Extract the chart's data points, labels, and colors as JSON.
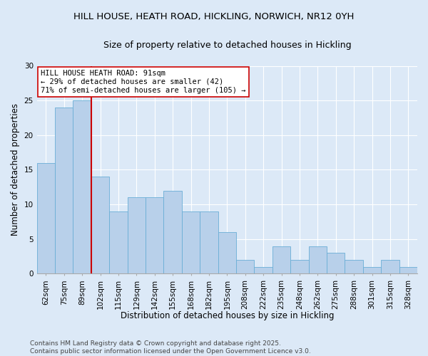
{
  "title1": "HILL HOUSE, HEATH ROAD, HICKLING, NORWICH, NR12 0YH",
  "title2": "Size of property relative to detached houses in Hickling",
  "xlabel": "Distribution of detached houses by size in Hickling",
  "ylabel": "Number of detached properties",
  "categories": [
    "62sqm",
    "75sqm",
    "89sqm",
    "102sqm",
    "115sqm",
    "129sqm",
    "142sqm",
    "155sqm",
    "168sqm",
    "182sqm",
    "195sqm",
    "208sqm",
    "222sqm",
    "235sqm",
    "248sqm",
    "262sqm",
    "275sqm",
    "288sqm",
    "301sqm",
    "315sqm",
    "328sqm"
  ],
  "values": [
    16,
    24,
    25,
    14,
    9,
    11,
    11,
    12,
    9,
    9,
    6,
    2,
    1,
    4,
    2,
    4,
    3,
    2,
    1,
    2,
    1
  ],
  "bar_color": "#b8d0ea",
  "bar_edge_color": "#6aaed6",
  "highlight_index": 2,
  "highlight_line_color": "#cc0000",
  "annotation_text": "HILL HOUSE HEATH ROAD: 91sqm\n← 29% of detached houses are smaller (42)\n71% of semi-detached houses are larger (105) →",
  "annotation_box_color": "#ffffff",
  "annotation_box_edge_color": "#cc0000",
  "ylim": [
    0,
    30
  ],
  "yticks": [
    0,
    5,
    10,
    15,
    20,
    25,
    30
  ],
  "footer1": "Contains HM Land Registry data © Crown copyright and database right 2025.",
  "footer2": "Contains public sector information licensed under the Open Government Licence v3.0.",
  "background_color": "#dce9f7",
  "plot_background_color": "#dce9f7",
  "title_fontsize": 9.5,
  "subtitle_fontsize": 9,
  "label_fontsize": 8.5,
  "tick_fontsize": 7.5,
  "footer_fontsize": 6.5,
  "annotation_fontsize": 7.5
}
